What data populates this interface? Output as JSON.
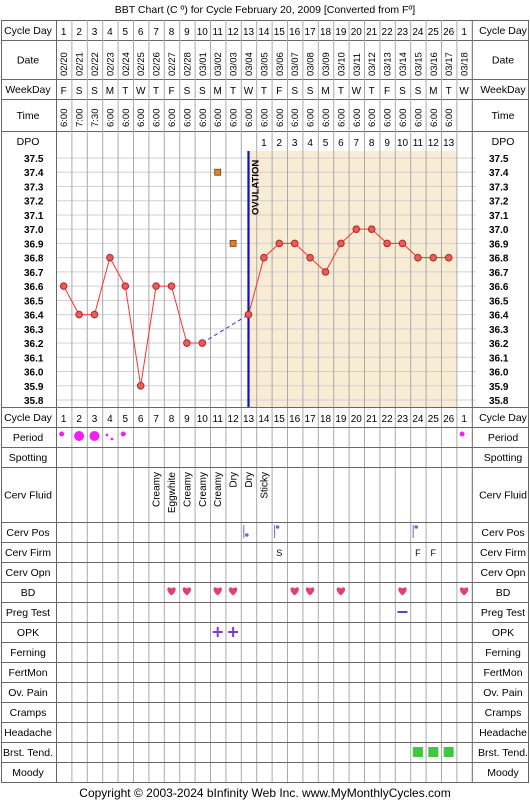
{
  "title": "BBT Chart (C º) for Cycle February 20, 2009  [Converted from Fº]",
  "copyright": "Copyright © 2003-2024 bInfinity Web Inc.    www.MyMonthlyCycles.com",
  "ovulation_label": "OVULATION",
  "row_labels": {
    "cycle_day": "Cycle Day",
    "date": "Date",
    "weekday": "WeekDay",
    "time": "Time",
    "dpo": "DPO",
    "period": "Period",
    "spotting": "Spotting",
    "cerv_fluid": "Cerv Fluid",
    "cerv_pos": "Cerv Pos",
    "cerv_firm": "Cerv Firm",
    "cerv_opn": "Cerv Opn",
    "bd": "BD",
    "preg_test": "Preg Test",
    "opk": "OPK",
    "ferning": "Ferning",
    "fertmon": "FertMon",
    "ov_pain": "Ov. Pain",
    "cramps": "Cramps",
    "headache": "Headache",
    "brst_tend": "Brst. Tend.",
    "moody": "Moody"
  },
  "days": [
    "1",
    "2",
    "3",
    "4",
    "5",
    "6",
    "7",
    "8",
    "9",
    "10",
    "11",
    "12",
    "13",
    "14",
    "15",
    "16",
    "17",
    "18",
    "19",
    "20",
    "21",
    "22",
    "23",
    "24",
    "25",
    "26",
    "1"
  ],
  "dates": [
    "02/20",
    "02/21",
    "02/22",
    "02/23",
    "02/24",
    "02/25",
    "02/26",
    "02/27",
    "02/28",
    "03/01",
    "03/02",
    "03/03",
    "03/04",
    "03/05",
    "03/06",
    "03/07",
    "03/08",
    "03/09",
    "03/10",
    "03/11",
    "03/12",
    "03/13",
    "03/14",
    "03/15",
    "03/16",
    "03/17",
    "03/18"
  ],
  "weekdays": [
    "F",
    "S",
    "S",
    "M",
    "T",
    "W",
    "T",
    "F",
    "S",
    "S",
    "M",
    "T",
    "W",
    "T",
    "F",
    "S",
    "S",
    "M",
    "T",
    "W",
    "T",
    "F",
    "S",
    "S",
    "M",
    "T",
    "W"
  ],
  "times": [
    "6:00",
    "7:00",
    "7:30",
    "6:00",
    "6:00",
    "6:00",
    "6:00",
    "6:00",
    "6:00",
    "6:00",
    "6:00",
    "6:00",
    "6:00",
    "6:00",
    "6:00",
    "6:00",
    "6:00",
    "6:00",
    "6:00",
    "6:00",
    "6:00",
    "6:00",
    "6:00",
    "6:00",
    "6:00",
    "6:00",
    ""
  ],
  "dpo": [
    "",
    "",
    "",
    "",
    "",
    "",
    "",
    "",
    "",
    "",
    "",
    "",
    "",
    "1",
    "2",
    "3",
    "4",
    "5",
    "6",
    "7",
    "8",
    "9",
    "10",
    "11",
    "12",
    "13",
    ""
  ],
  "cerv_fluid": [
    "",
    "",
    "",
    "",
    "",
    "",
    "Creamy",
    "Eggwhite",
    "Creamy",
    "Creamy",
    "Creamy",
    "Dry",
    "Dry",
    "Sticky",
    "",
    "",
    "",
    "",
    "",
    "",
    "",
    "",
    "",
    "",
    "",
    "",
    ""
  ],
  "cerv_firm": [
    "",
    "",
    "",
    "",
    "",
    "",
    "",
    "",
    "",
    "",
    "",
    "",
    "",
    "",
    "S",
    "",
    "",
    "",
    "",
    "",
    "",
    "",
    "",
    "F",
    "F",
    "",
    ""
  ],
  "chart_data": {
    "type": "line",
    "x": [
      "1",
      "2",
      "3",
      "4",
      "5",
      "6",
      "7",
      "8",
      "9",
      "10",
      "11",
      "12",
      "13",
      "14",
      "15",
      "16",
      "17",
      "18",
      "19",
      "20",
      "21",
      "22",
      "23",
      "24",
      "25",
      "26",
      "1"
    ],
    "y_ticks": [
      "37.5",
      "37.4",
      "37.3",
      "37.2",
      "37.1",
      "37.0",
      "36.9",
      "36.8",
      "36.7",
      "36.6",
      "36.5",
      "36.4",
      "36.3",
      "36.2",
      "36.1",
      "36.0",
      "35.9",
      "35.8"
    ],
    "ylim": [
      35.8,
      37.5
    ],
    "series": [
      {
        "values": [
          36.6,
          36.4,
          36.4,
          36.8,
          36.6,
          35.9,
          36.6,
          36.6,
          36.2,
          36.2,
          null,
          null,
          36.4,
          36.8,
          36.9,
          36.9,
          36.8,
          36.7,
          36.9,
          37.0,
          37.0,
          36.9,
          36.9,
          36.8,
          36.8,
          36.8,
          null
        ]
      }
    ],
    "discarded": [
      {
        "x": "11",
        "y": 37.4
      },
      {
        "x": "12",
        "y": 36.9
      }
    ],
    "ovulation_day": "13",
    "post_ovulation_shading": true,
    "line_color": "#ff3030",
    "point_fill": "#e06060",
    "coverline_color": "#3030e0",
    "discard_color": "#e08030",
    "shade_color": "#f8ecd4"
  },
  "markers": {
    "period": {
      "1": "small",
      "2": "large",
      "3": "large",
      "4": "spot",
      "5": "small",
      "27": "small"
    },
    "cerv_pos": {
      "13": "low",
      "15": "high",
      "24": "high"
    },
    "bd": [
      "8",
      "9",
      "11",
      "12",
      "16",
      "17",
      "19",
      "23",
      "27"
    ],
    "preg_test": [
      "23"
    ],
    "opk": [
      "11",
      "12"
    ],
    "brst_tend": [
      "24",
      "25",
      "26"
    ]
  },
  "colors": {
    "period": "#f020f0",
    "heart": "#e0407a",
    "preg": "#6040c0",
    "opk": "#8040c8",
    "brst": "#40c840",
    "cervpos": "#8060d0"
  }
}
